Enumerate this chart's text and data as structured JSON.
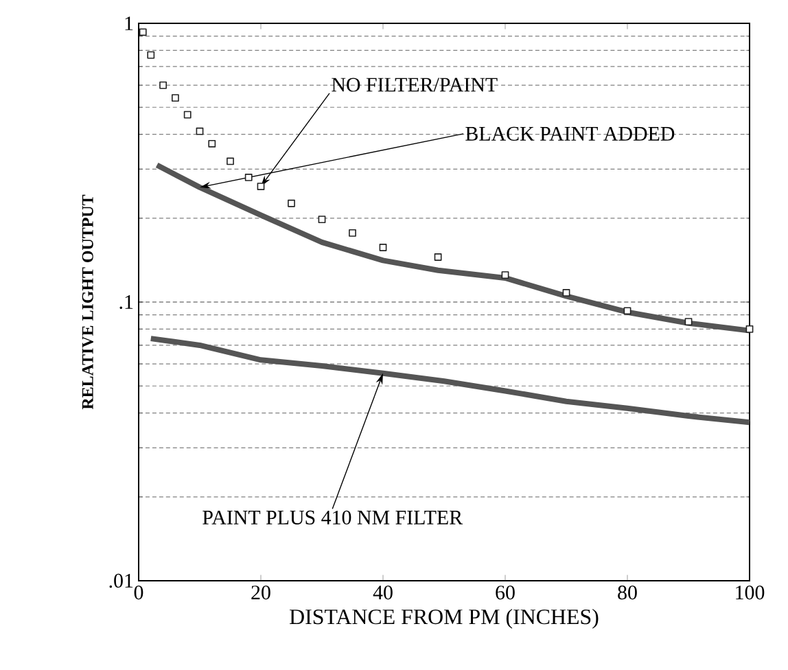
{
  "chart_data": {
    "type": "line",
    "xlabel": "DISTANCE FROM PM (INCHES)",
    "ylabel": "RELATIVE LIGHT OUTPUT",
    "log": "y",
    "grid": "y",
    "xlim": [
      0,
      100
    ],
    "ylim": [
      0.01,
      1
    ],
    "xticks": [
      0,
      20,
      40,
      60,
      80,
      100
    ],
    "yticks": [
      {
        "value": 0.01,
        "label": ".01"
      },
      {
        "value": 0.1,
        "label": ".1"
      },
      {
        "value": 1,
        "label": "1"
      }
    ],
    "series": [
      {
        "type": "scatter",
        "marker": "square",
        "color": "#222222",
        "x": [
          0.7,
          2,
          4,
          6,
          8,
          10,
          12,
          15,
          18,
          20,
          25,
          30,
          35,
          40,
          49,
          60,
          70,
          80,
          90,
          100
        ],
        "values": [
          0.93,
          0.77,
          0.6,
          0.54,
          0.47,
          0.41,
          0.37,
          0.32,
          0.28,
          0.26,
          0.226,
          0.198,
          0.177,
          0.157,
          0.145,
          0.125,
          0.108,
          0.093,
          0.085,
          0.08
        ]
      },
      {
        "line_style": "solid",
        "color": "#555555",
        "x": [
          3,
          10,
          20,
          30,
          40,
          49,
          60,
          70,
          80,
          90,
          100
        ],
        "values": [
          0.31,
          0.258,
          0.205,
          0.164,
          0.141,
          0.13,
          0.122,
          0.105,
          0.092,
          0.084,
          0.079
        ]
      },
      {
        "line_style": "solid",
        "color": "#555555",
        "x": [
          2,
          10,
          20,
          30,
          40,
          50,
          60,
          70,
          80,
          90,
          100
        ],
        "values": [
          0.074,
          0.07,
          0.062,
          0.059,
          0.0555,
          0.052,
          0.048,
          0.044,
          0.0416,
          0.039,
          0.037
        ]
      }
    ],
    "annotations": [
      {
        "text": "NO FILTER/PAINT",
        "x": 20,
        "y": 0.26
      },
      {
        "text": "BLACK PAINT ADDED",
        "x": 10,
        "y": 0.258
      },
      {
        "text": "PAINT PLUS 410 NM FILTER",
        "x": 40,
        "y": 0.0555
      }
    ]
  }
}
